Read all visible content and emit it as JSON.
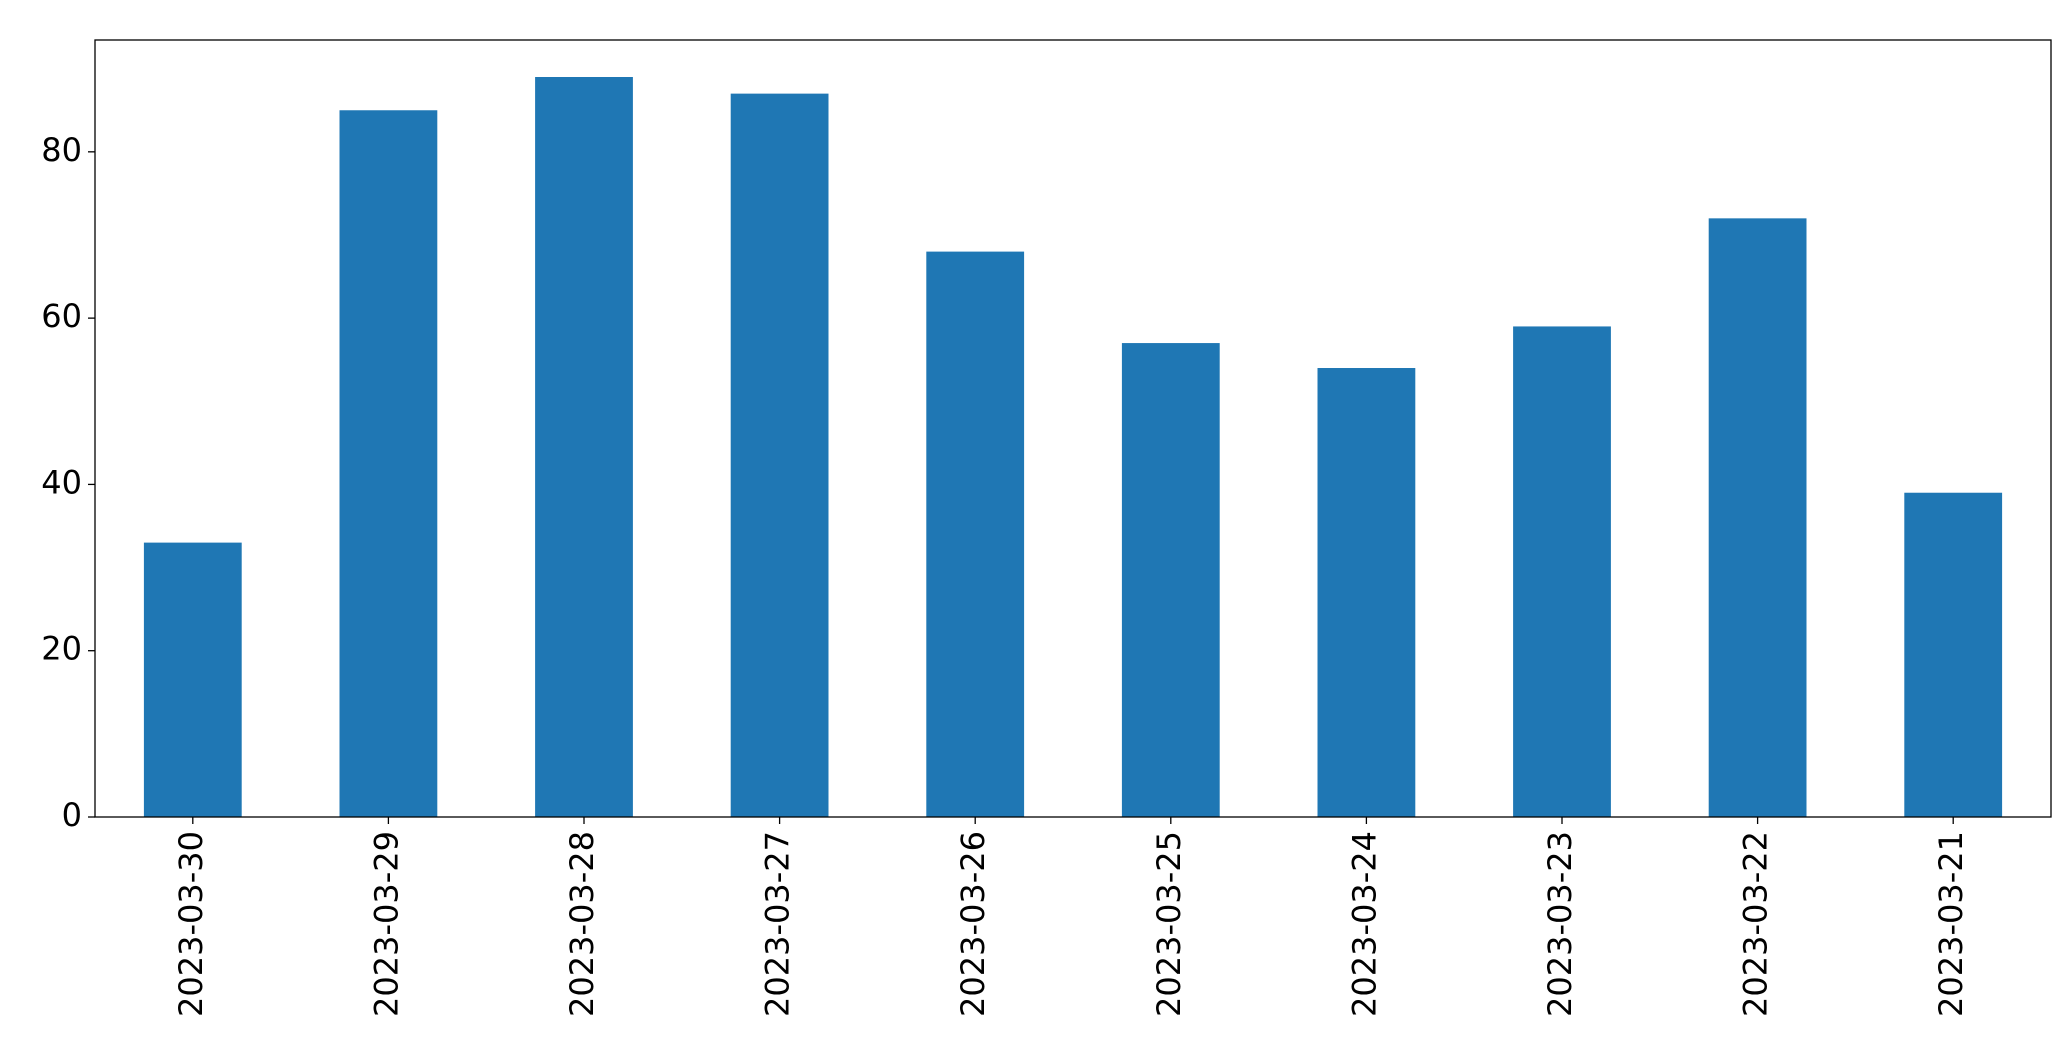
{
  "chart_data": {
    "type": "bar",
    "categories": [
      "2023-03-30",
      "2023-03-29",
      "2023-03-28",
      "2023-03-27",
      "2023-03-26",
      "2023-03-25",
      "2023-03-24",
      "2023-03-23",
      "2023-03-22",
      "2023-03-21"
    ],
    "values": [
      33,
      85,
      89,
      87,
      68,
      57,
      54,
      59,
      72,
      39
    ],
    "color": "#1f77b4",
    "ylim": [
      0,
      93.45
    ],
    "yticks": [
      0,
      20,
      40,
      60,
      80
    ],
    "grid": false
  }
}
